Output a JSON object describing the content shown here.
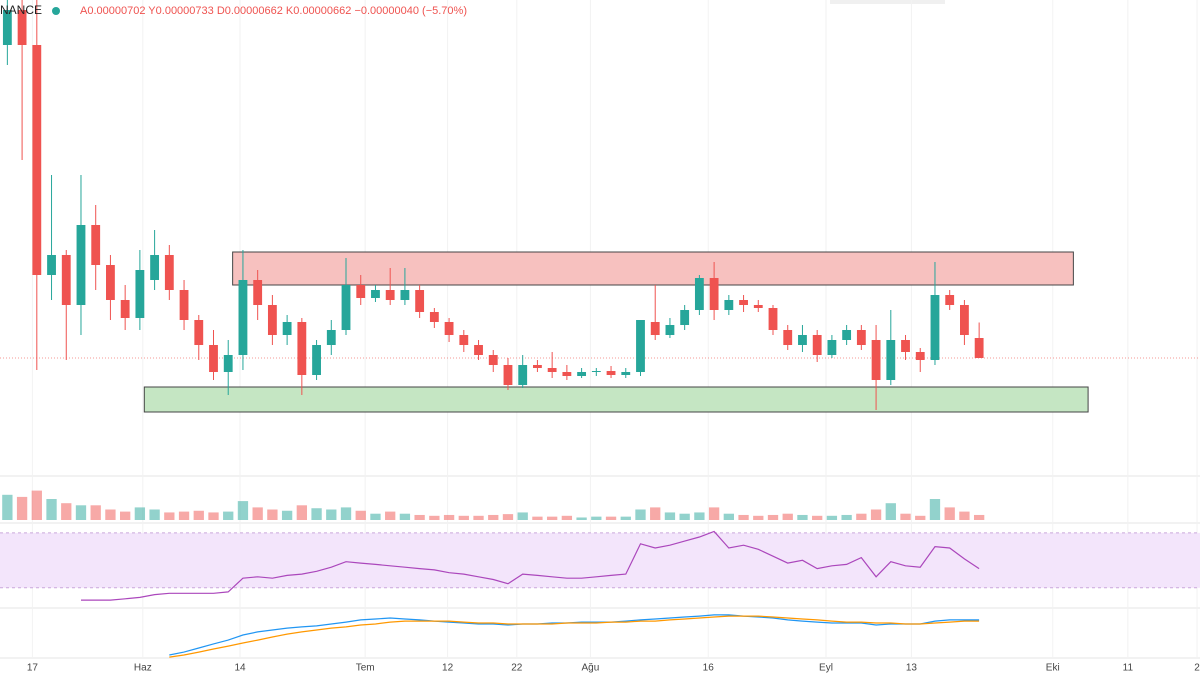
{
  "header": {
    "source": "NANCE",
    "ohlc": "A0.00000702 Y0.00000733 D0.00000662 K0.00000662 −0.00000040 (−5.70%)"
  },
  "chart_data": [
    {
      "type": "candlestick",
      "up_color": "#26a69a",
      "down_color": "#ef5350",
      "xlim": [
        -0.5,
        81
      ],
      "xticks": [
        {
          "value": 1.7,
          "label": "17"
        },
        {
          "value": 9.2,
          "label": "Haz"
        },
        {
          "value": 15.8,
          "label": "14"
        },
        {
          "value": 24.3,
          "label": "Tem"
        },
        {
          "value": 29.9,
          "label": "12"
        },
        {
          "value": 34.6,
          "label": "22"
        },
        {
          "value": 39.6,
          "label": "Ağu"
        },
        {
          "value": 47.6,
          "label": "16"
        },
        {
          "value": 55.6,
          "label": "Eyl"
        },
        {
          "value": 61.4,
          "label": "13"
        },
        {
          "value": 71.0,
          "label": "Eki"
        },
        {
          "value": 76.1,
          "label": "11"
        },
        {
          "value": 80.8,
          "label": "2"
        }
      ],
      "ylim": [
        4.38e-06,
        1.378e-05
      ],
      "open": [
        1.288e-05,
        1.358e-05,
        1.288e-05,
        8.28e-06,
        8.68e-06,
        7.68e-06,
        9.28e-06,
        8.48e-06,
        7.78e-06,
        7.42e-06,
        8.18e-06,
        8.68e-06,
        7.98e-06,
        7.38e-06,
        6.88e-06,
        6.34e-06,
        6.68e-06,
        8.18e-06,
        7.68e-06,
        7.08e-06,
        7.34e-06,
        6.28e-06,
        6.88e-06,
        7.18e-06,
        8.08e-06,
        7.82e-06,
        7.98e-06,
        7.78e-06,
        7.98e-06,
        7.54e-06,
        7.34e-06,
        7.08e-06,
        6.88e-06,
        6.68e-06,
        6.48e-06,
        6.08e-06,
        6.48e-06,
        6.42e-06,
        6.34e-06,
        6.26e-06,
        6.34e-06,
        6.36e-06,
        6.28e-06,
        6.34e-06,
        7.34e-06,
        7.08e-06,
        7.28e-06,
        7.58e-06,
        8.22e-06,
        7.58e-06,
        7.78e-06,
        7.68e-06,
        7.62e-06,
        7.18e-06,
        6.88e-06,
        7.08e-06,
        6.68e-06,
        6.98e-06,
        7.18e-06,
        6.98e-06,
        6.18e-06,
        6.98e-06,
        6.74e-06,
        6.58e-06,
        7.88e-06,
        7.68e-06,
        7.02e-06
      ],
      "high": [
        1.378e-05,
        1.378e-05,
        1.378e-05,
        1.028e-05,
        8.78e-06,
        1.028e-05,
        9.68e-06,
        8.68e-06,
        8.08e-06,
        8.78e-06,
        9.18e-06,
        8.88e-06,
        8.18e-06,
        7.48e-06,
        7.18e-06,
        6.98e-06,
        8.78e-06,
        8.38e-06,
        7.88e-06,
        7.48e-06,
        7.42e-06,
        6.98e-06,
        7.38e-06,
        8.62e-06,
        8.28e-06,
        8.08e-06,
        8.42e-06,
        8.42e-06,
        8.08e-06,
        7.62e-06,
        7.42e-06,
        7.18e-06,
        6.98e-06,
        6.78e-06,
        6.62e-06,
        6.68e-06,
        6.58e-06,
        6.74e-06,
        6.48e-06,
        6.42e-06,
        6.42e-06,
        6.46e-06,
        6.42e-06,
        7.38e-06,
        8.08e-06,
        7.42e-06,
        7.68e-06,
        8.28e-06,
        8.54e-06,
        7.88e-06,
        7.88e-06,
        7.78e-06,
        7.68e-06,
        7.28e-06,
        7.28e-06,
        7.18e-06,
        7.08e-06,
        7.28e-06,
        7.28e-06,
        7.28e-06,
        7.58e-06,
        7.08e-06,
        6.82e-06,
        8.54e-06,
        7.98e-06,
        7.78e-06,
        7.33e-06
      ],
      "low": [
        1.248e-05,
        1.058e-05,
        6.38e-06,
        7.78e-06,
        6.58e-06,
        7.08e-06,
        7.98e-06,
        7.38e-06,
        7.18e-06,
        7.18e-06,
        7.98e-06,
        7.78e-06,
        7.18e-06,
        6.58e-06,
        6.18e-06,
        5.88e-06,
        6.38e-06,
        7.38e-06,
        6.88e-06,
        6.88e-06,
        5.88e-06,
        6.18e-06,
        6.68e-06,
        7.08e-06,
        7.68e-06,
        7.74e-06,
        7.68e-06,
        7.68e-06,
        7.42e-06,
        7.22e-06,
        6.94e-06,
        6.74e-06,
        6.58e-06,
        6.34e-06,
        5.98e-06,
        6.02e-06,
        6.34e-06,
        6.22e-06,
        6.18e-06,
        6.22e-06,
        6.26e-06,
        6.22e-06,
        6.22e-06,
        6.26e-06,
        6.98e-06,
        7.02e-06,
        7.18e-06,
        7.48e-06,
        7.38e-06,
        7.48e-06,
        7.54e-06,
        7.54e-06,
        7.08e-06,
        6.78e-06,
        6.74e-06,
        6.54e-06,
        6.62e-06,
        6.88e-06,
        6.78e-06,
        5.58e-06,
        6.08e-06,
        6.58e-06,
        6.34e-06,
        6.48e-06,
        7.58e-06,
        6.88e-06,
        6.62e-06
      ],
      "close": [
        1.358e-05,
        1.288e-05,
        8.28e-06,
        8.68e-06,
        7.68e-06,
        9.28e-06,
        8.48e-06,
        7.78e-06,
        7.42e-06,
        8.38e-06,
        8.68e-06,
        7.98e-06,
        7.38e-06,
        6.88e-06,
        6.34e-06,
        6.68e-06,
        8.18e-06,
        7.68e-06,
        7.08e-06,
        7.34e-06,
        6.28e-06,
        6.88e-06,
        7.18e-06,
        8.08e-06,
        7.82e-06,
        7.98e-06,
        7.78e-06,
        7.98e-06,
        7.54e-06,
        7.34e-06,
        7.08e-06,
        6.88e-06,
        6.68e-06,
        6.48e-06,
        6.08e-06,
        6.48e-06,
        6.42e-06,
        6.34e-06,
        6.26e-06,
        6.34e-06,
        6.36e-06,
        6.28e-06,
        6.34e-06,
        7.38e-06,
        7.08e-06,
        7.28e-06,
        7.58e-06,
        8.22e-06,
        7.58e-06,
        7.78e-06,
        7.68e-06,
        7.62e-06,
        7.18e-06,
        6.88e-06,
        7.08e-06,
        6.68e-06,
        6.98e-06,
        7.18e-06,
        6.88e-06,
        6.18e-06,
        6.98e-06,
        6.74e-06,
        6.58e-06,
        7.88e-06,
        7.68e-06,
        7.08e-06,
        6.62e-06
      ],
      "zones": [
        {
          "from": 15.3,
          "to": 72.4,
          "low": 8.08e-06,
          "high": 8.74e-06,
          "color": "#f7c1bf"
        },
        {
          "from": 9.3,
          "to": 73.4,
          "low": 5.54e-06,
          "high": 6.04e-06,
          "color": "#c5e6c3"
        }
      ]
    },
    {
      "type": "volume",
      "ylim": [
        0,
        100
      ],
      "values": [
        60,
        55,
        70,
        50,
        40,
        35,
        35,
        25,
        20,
        30,
        25,
        18,
        20,
        22,
        18,
        20,
        45,
        30,
        25,
        22,
        35,
        28,
        25,
        30,
        22,
        15,
        20,
        15,
        12,
        10,
        12,
        10,
        10,
        12,
        14,
        18,
        8,
        8,
        10,
        6,
        8,
        8,
        8,
        25,
        30,
        18,
        15,
        18,
        30,
        15,
        12,
        10,
        12,
        15,
        12,
        10,
        10,
        12,
        15,
        25,
        40,
        15,
        10,
        50,
        30,
        20,
        12
      ]
    },
    {
      "type": "line",
      "name": "rsi",
      "ylim": [
        16,
        75
      ],
      "band": [
        30,
        70
      ],
      "color": "#ab47bc",
      "values": [
        null,
        null,
        null,
        null,
        null,
        21,
        21,
        21,
        22,
        23,
        25,
        26,
        26,
        26,
        26,
        27,
        37,
        38,
        37,
        39,
        40,
        42,
        45,
        49,
        48,
        47,
        46,
        45,
        44,
        43,
        41,
        40,
        38,
        36,
        33,
        40,
        39,
        38,
        37,
        37,
        38,
        39,
        40,
        62,
        59,
        61,
        64,
        67,
        71,
        59,
        61,
        58,
        53,
        48,
        50,
        44,
        46,
        47,
        52,
        38,
        49,
        46,
        45,
        60,
        59,
        51,
        44
      ]
    },
    {
      "type": "line",
      "name": "macd",
      "ylim": [
        -1,
        1
      ],
      "series": [
        {
          "color": "#2196f3",
          "values": [
            null,
            null,
            null,
            null,
            null,
            null,
            null,
            null,
            null,
            null,
            null,
            -0.79,
            -0.67,
            -0.5,
            -0.33,
            -0.17,
            0.04,
            0.17,
            0.25,
            0.33,
            0.38,
            0.42,
            0.5,
            0.58,
            0.67,
            0.71,
            0.75,
            0.71,
            0.67,
            0.62,
            0.58,
            0.54,
            0.5,
            0.5,
            0.46,
            0.5,
            0.5,
            0.54,
            0.54,
            0.58,
            0.58,
            0.58,
            0.62,
            0.67,
            0.71,
            0.75,
            0.79,
            0.83,
            0.88,
            0.88,
            0.83,
            0.79,
            0.75,
            0.67,
            0.62,
            0.58,
            0.54,
            0.54,
            0.54,
            0.46,
            0.5,
            0.5,
            0.5,
            0.62,
            0.67,
            0.67,
            0.67
          ]
        },
        {
          "color": "#ff9800",
          "values": [
            null,
            null,
            null,
            null,
            null,
            null,
            null,
            null,
            null,
            null,
            null,
            -0.88,
            -0.79,
            -0.67,
            -0.54,
            -0.42,
            -0.29,
            -0.17,
            -0.04,
            0.08,
            0.17,
            0.25,
            0.33,
            0.38,
            0.46,
            0.5,
            0.58,
            0.62,
            0.62,
            0.62,
            0.62,
            0.58,
            0.54,
            0.54,
            0.5,
            0.5,
            0.5,
            0.5,
            0.54,
            0.54,
            0.54,
            0.58,
            0.58,
            0.62,
            0.62,
            0.67,
            0.71,
            0.75,
            0.79,
            0.83,
            0.83,
            0.83,
            0.79,
            0.75,
            0.71,
            0.67,
            0.62,
            0.58,
            0.58,
            0.54,
            0.54,
            0.5,
            0.5,
            0.54,
            0.58,
            0.62,
            0.62
          ]
        }
      ]
    }
  ]
}
